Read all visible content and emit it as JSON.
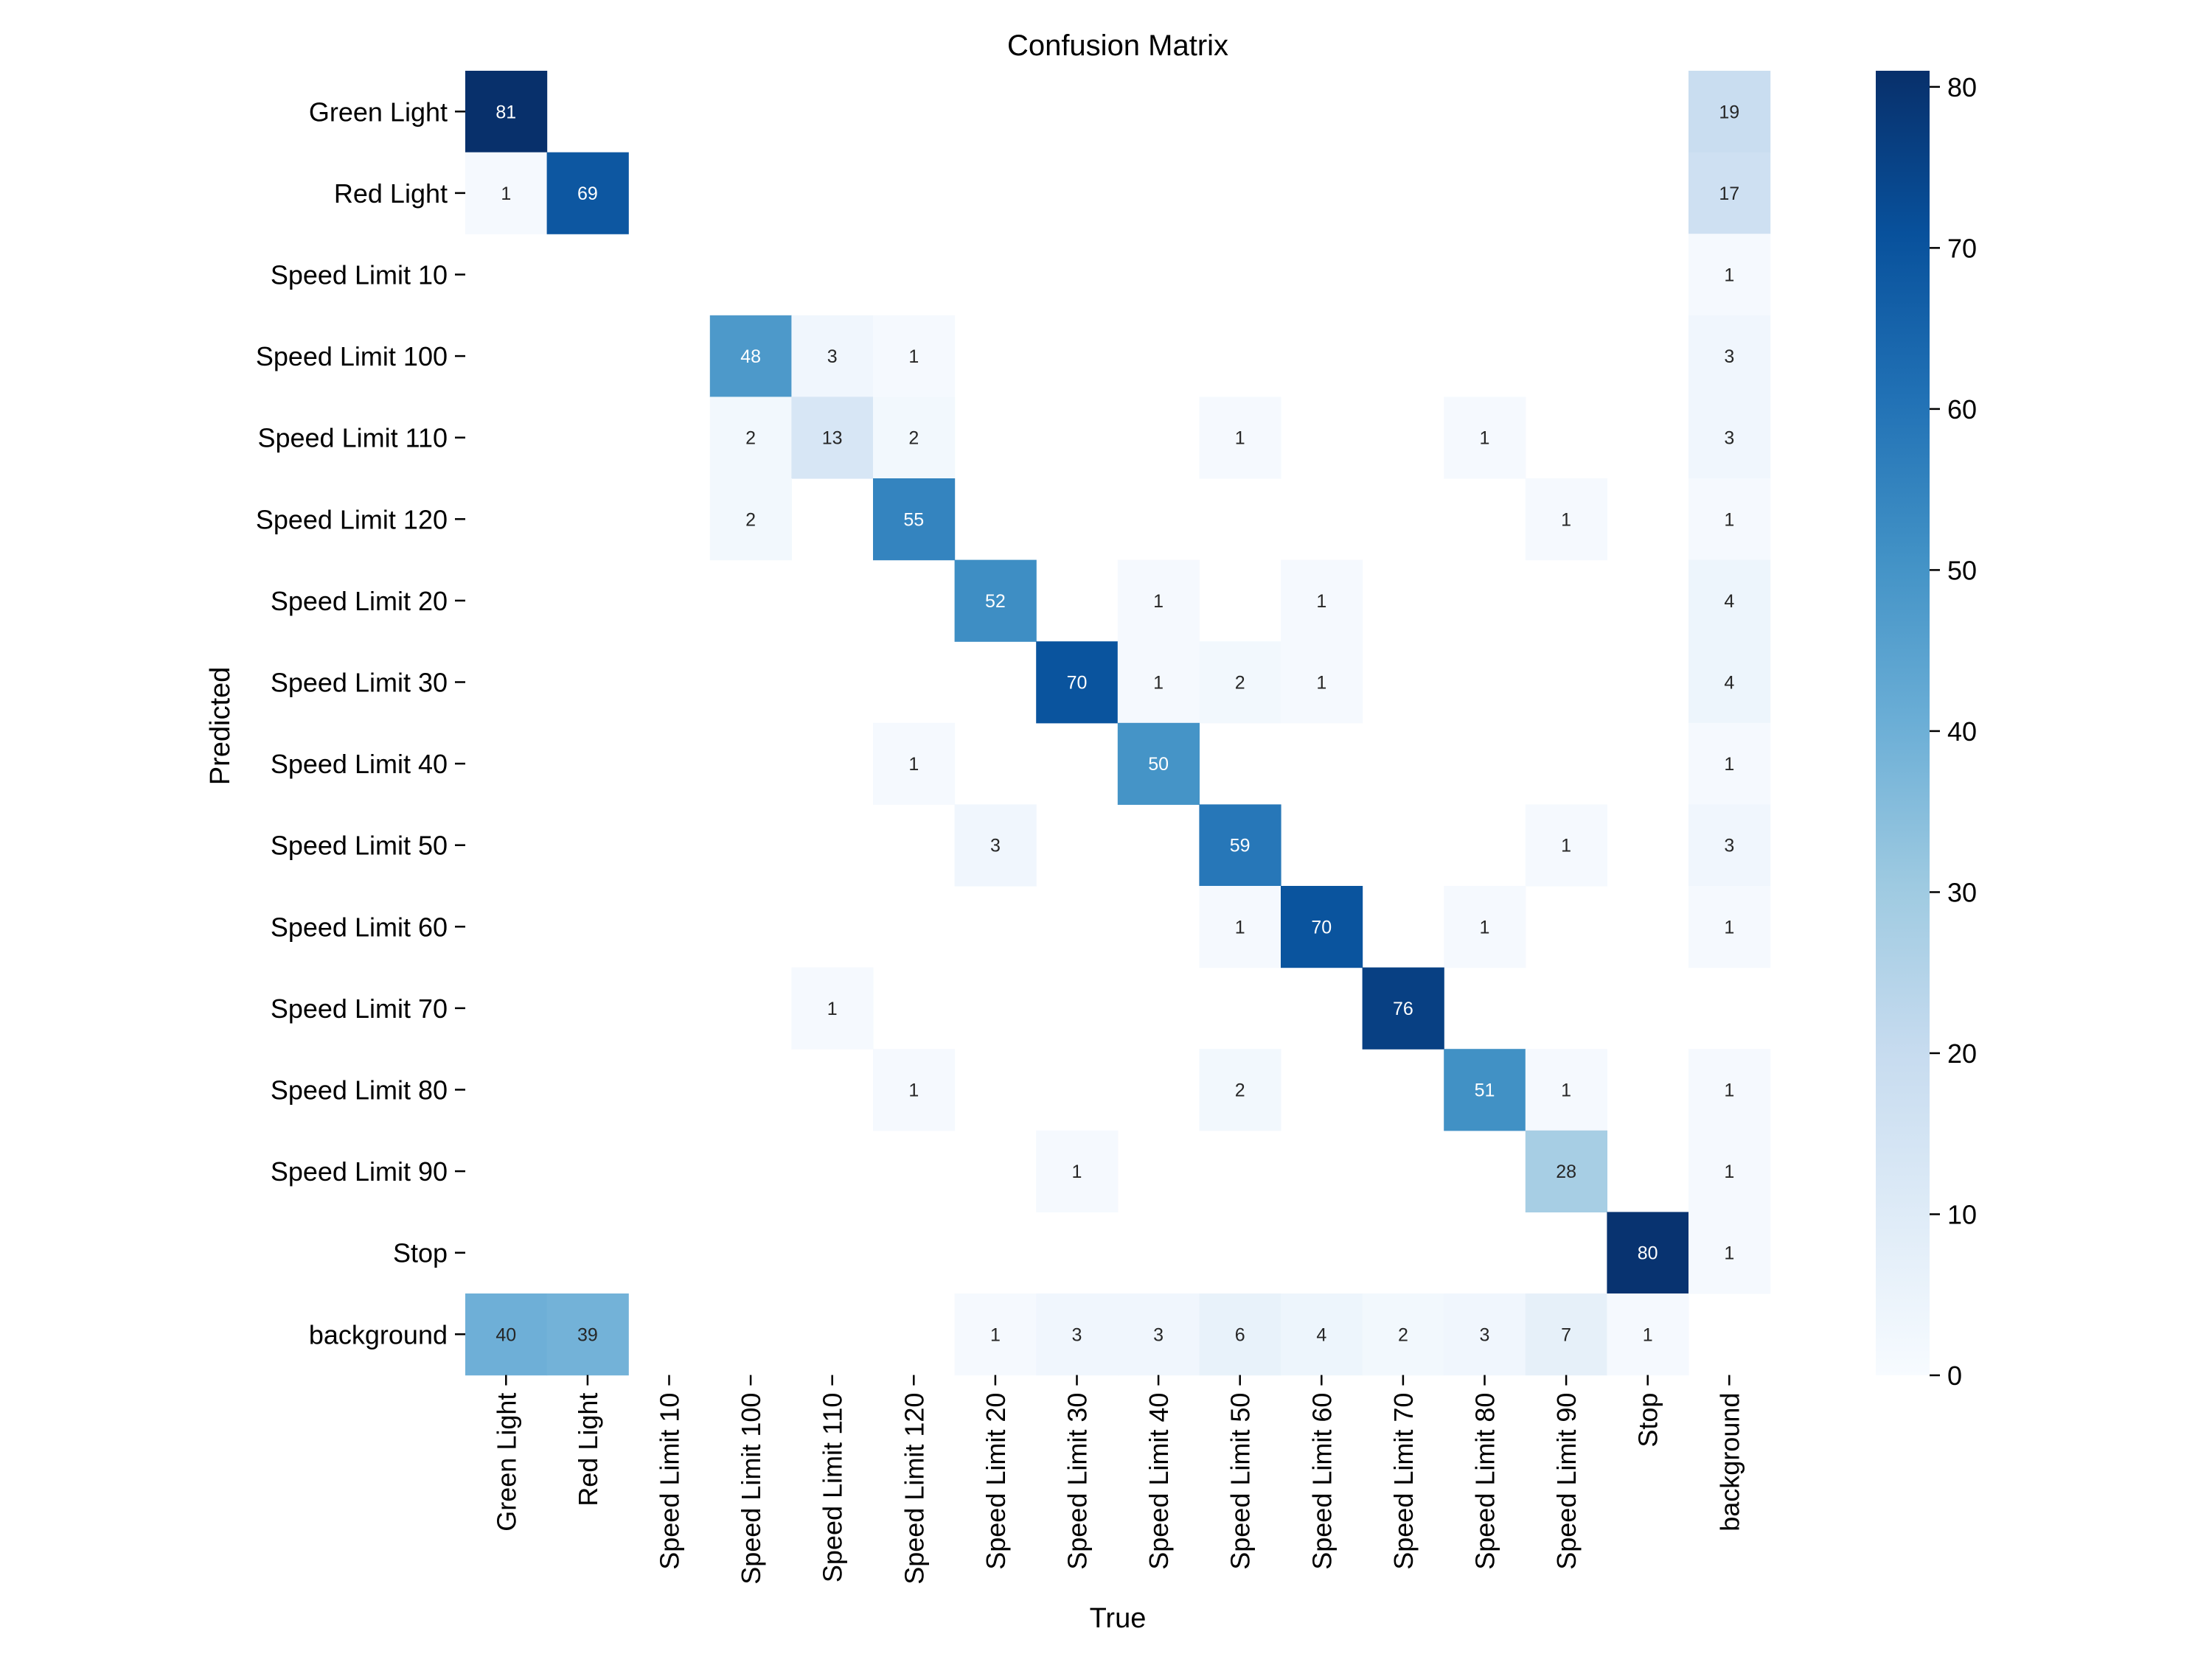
{
  "chart_data": {
    "type": "heatmap",
    "title": "Confusion Matrix",
    "xlabel": "True",
    "ylabel": "Predicted",
    "row_labels": [
      "Green Light",
      "Red Light",
      "Speed Limit 10",
      "Speed Limit 100",
      "Speed Limit 110",
      "Speed Limit 120",
      "Speed Limit 20",
      "Speed Limit 30",
      "Speed Limit 40",
      "Speed Limit 50",
      "Speed Limit 60",
      "Speed Limit 70",
      "Speed Limit 80",
      "Speed Limit 90",
      "Stop",
      "background"
    ],
    "col_labels": [
      "Green Light",
      "Red Light",
      "Speed Limit 10",
      "Speed Limit 100",
      "Speed Limit 110",
      "Speed Limit 120",
      "Speed Limit 20",
      "Speed Limit 30",
      "Speed Limit 40",
      "Speed Limit 50",
      "Speed Limit 60",
      "Speed Limit 70",
      "Speed Limit 80",
      "Speed Limit 90",
      "Stop",
      "background"
    ],
    "matrix": [
      [
        81,
        null,
        null,
        null,
        null,
        null,
        null,
        null,
        null,
        null,
        null,
        null,
        null,
        null,
        null,
        19
      ],
      [
        1,
        69,
        null,
        null,
        null,
        null,
        null,
        null,
        null,
        null,
        null,
        null,
        null,
        null,
        null,
        17
      ],
      [
        null,
        null,
        null,
        null,
        null,
        null,
        null,
        null,
        null,
        null,
        null,
        null,
        null,
        null,
        null,
        1
      ],
      [
        null,
        null,
        null,
        48,
        3,
        1,
        null,
        null,
        null,
        null,
        null,
        null,
        null,
        null,
        null,
        3
      ],
      [
        null,
        null,
        null,
        2,
        13,
        2,
        null,
        null,
        null,
        1,
        null,
        null,
        1,
        null,
        null,
        3
      ],
      [
        null,
        null,
        null,
        2,
        null,
        55,
        null,
        null,
        null,
        null,
        null,
        null,
        null,
        1,
        null,
        1
      ],
      [
        null,
        null,
        null,
        null,
        null,
        null,
        52,
        null,
        1,
        null,
        1,
        null,
        null,
        null,
        null,
        4
      ],
      [
        null,
        null,
        null,
        null,
        null,
        null,
        null,
        70,
        1,
        2,
        1,
        null,
        null,
        null,
        null,
        4
      ],
      [
        null,
        null,
        null,
        null,
        null,
        1,
        null,
        null,
        50,
        null,
        null,
        null,
        null,
        null,
        null,
        1
      ],
      [
        null,
        null,
        null,
        null,
        null,
        null,
        3,
        null,
        null,
        59,
        null,
        null,
        null,
        1,
        null,
        3
      ],
      [
        null,
        null,
        null,
        null,
        null,
        null,
        null,
        null,
        null,
        1,
        70,
        null,
        1,
        null,
        null,
        1
      ],
      [
        null,
        null,
        null,
        null,
        1,
        null,
        null,
        null,
        null,
        null,
        null,
        76,
        null,
        null,
        null,
        null
      ],
      [
        null,
        null,
        null,
        null,
        null,
        1,
        null,
        null,
        null,
        2,
        null,
        null,
        51,
        1,
        null,
        1
      ],
      [
        null,
        null,
        null,
        null,
        null,
        null,
        null,
        1,
        null,
        null,
        null,
        null,
        null,
        28,
        null,
        1
      ],
      [
        null,
        null,
        null,
        null,
        null,
        null,
        null,
        null,
        null,
        null,
        null,
        null,
        null,
        null,
        80,
        1
      ],
      [
        40,
        39,
        null,
        null,
        null,
        null,
        1,
        3,
        3,
        6,
        4,
        2,
        3,
        7,
        1,
        null
      ]
    ],
    "colorbar": {
      "min": 0,
      "max": 81,
      "ticks": [
        0,
        10,
        20,
        30,
        40,
        50,
        60,
        70,
        80
      ],
      "colormap": "Blues"
    },
    "colors": {
      "low": "#f7fbff",
      "high": "#08306b",
      "text_dark": "#262626",
      "text_light": "#ffffff"
    }
  }
}
